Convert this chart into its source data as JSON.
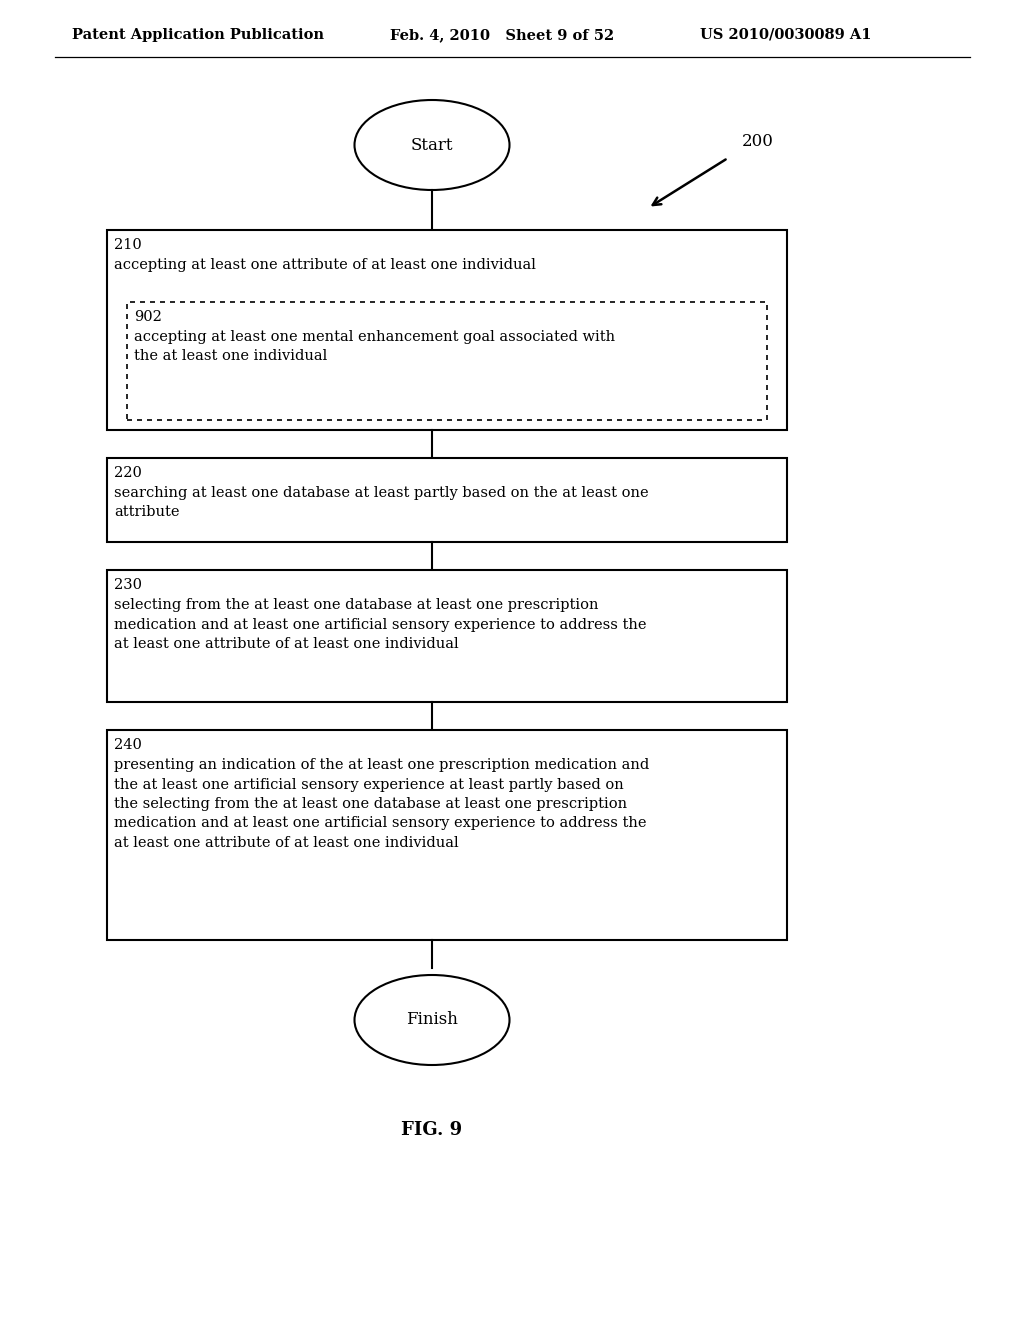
{
  "bg_color": "#ffffff",
  "header_left": "Patent Application Publication",
  "header_mid": "Feb. 4, 2010   Sheet 9 of 52",
  "header_right": "US 2010/0030089 A1",
  "fig_label": "FIG. 9",
  "diagram_label": "200",
  "start_label": "Start",
  "finish_label": "Finish",
  "boxes": [
    {
      "label": "210",
      "text": "accepting at least one attribute of at least one individual",
      "sub_box": {
        "label": "902",
        "text": "accepting at least one mental enhancement goal associated with\nthe at least one individual"
      }
    },
    {
      "label": "220",
      "text": "searching at least one database at least partly based on the at least one\nattribute"
    },
    {
      "label": "230",
      "text": "selecting from the at least one database at least one prescription\nmedication and at least one artificial sensory experience to address the\nat least one attribute of at least one individual"
    },
    {
      "label": "240",
      "text": "presenting an indication of the at least one prescription medication and\nthe at least one artificial sensory experience at least partly based on\nthe selecting from the at least one database at least one prescription\nmedication and at least one artificial sensory experience to address the\nat least one attribute of at least one individual"
    }
  ]
}
